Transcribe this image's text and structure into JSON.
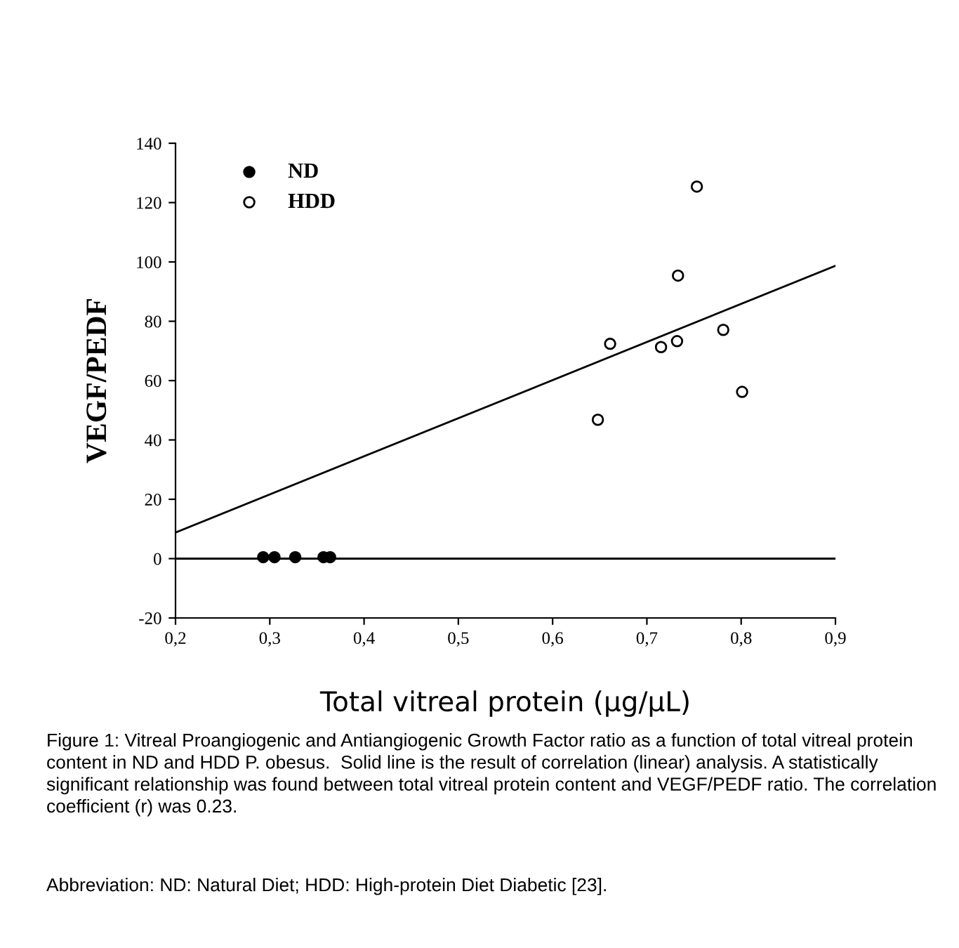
{
  "chart_data": {
    "type": "scatter",
    "xlabel": "Total vitreal protein (µg/µL)",
    "ylabel": "VEGF/PEDF",
    "series": [
      {
        "name": "ND",
        "color": "#000000",
        "marker": "circle",
        "x": [
          0.293,
          0.301,
          0.305,
          0.323,
          0.327,
          0.357,
          0.364
        ],
        "values": [
          0.5,
          null,
          0.5,
          null,
          0.5,
          0.5,
          0.5
        ]
      },
      {
        "name": "HDD",
        "color": "#ffffff",
        "marker": "circle",
        "x": [
          0.648,
          0.661,
          0.715,
          0.732,
          0.733,
          0.753,
          0.781,
          0.801
        ],
        "values": [
          46.8,
          72.4,
          71.3,
          73.3,
          95.4,
          125.4,
          77.1,
          56.2
        ]
      },
      {
        "type": "line",
        "color": "#000000",
        "line_style": "solid",
        "x": [
          0.2,
          0.9
        ],
        "values": [
          8.8,
          98.7
        ]
      }
    ],
    "ref_lines": [
      {
        "axis": "y",
        "value": 0,
        "color": "#000000"
      }
    ],
    "xlim": [
      0.2,
      0.9
    ],
    "ylim": [
      -20,
      140
    ],
    "xticks": [
      {
        "value": 0.2,
        "label": "0,2"
      },
      {
        "value": 0.3,
        "label": "0,3"
      },
      {
        "value": 0.4,
        "label": "0,4"
      },
      {
        "value": 0.5,
        "label": "0,5"
      },
      {
        "value": 0.6,
        "label": "0,6"
      },
      {
        "value": 0.7,
        "label": "0,7"
      },
      {
        "value": 0.8,
        "label": "0,8"
      },
      {
        "value": 0.9,
        "label": "0,9"
      }
    ],
    "yticks": [
      -20,
      0,
      20,
      40,
      60,
      80,
      100,
      120,
      140
    ],
    "grid": false,
    "legend": "top left",
    "annotations": [
      "Figure 1: Vitreal Proangiogenic and Antiangiogenic Growth Factor ratio as a function of total vitreal protein content in ND and HDD P. obesus.  Solid line is the result of correlation (linear) analysis. A statistically significant relationship was found between total vitreal protein content and VEGF/PEDF ratio. The correlation coefficient (r) was 0.23.",
      "Abbreviation: ND: Natural Diet; HDD: High-protein Diet Diabetic [23]."
    ]
  }
}
